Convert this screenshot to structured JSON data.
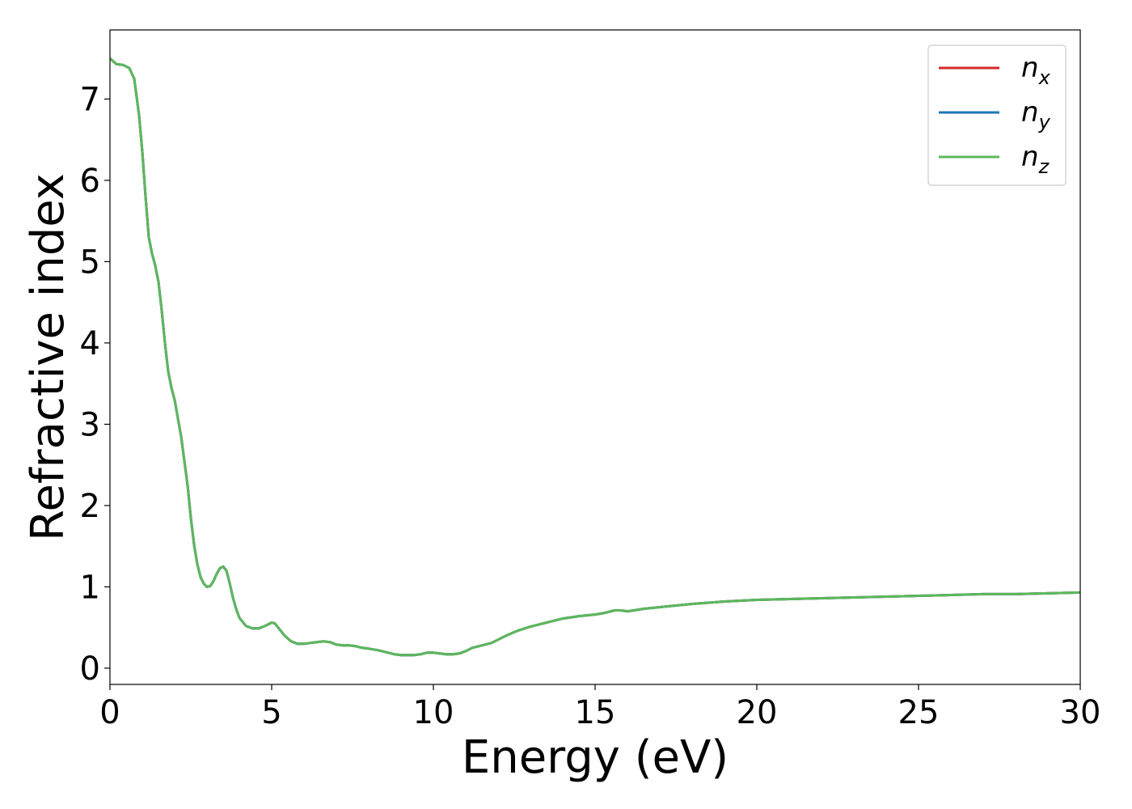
{
  "chart_data": {
    "type": "line",
    "title": "",
    "xlabel": "Energy (eV)",
    "ylabel": "Refractive index",
    "xlim": [
      0,
      30
    ],
    "ylim": [
      -0.2,
      7.85
    ],
    "xticks": [
      0,
      5,
      10,
      15,
      20,
      25,
      30
    ],
    "xtick_labels": [
      "0",
      "5",
      "10",
      "15",
      "20",
      "25",
      "30"
    ],
    "yticks": [
      0,
      1,
      2,
      3,
      4,
      5,
      6,
      7
    ],
    "ytick_labels": [
      "0",
      "1",
      "2",
      "3",
      "4",
      "5",
      "6",
      "7"
    ],
    "grid": false,
    "legend_position": "top-right",
    "x": [
      0,
      0.2,
      0.4,
      0.6,
      0.75,
      0.9,
      1.0,
      1.1,
      1.2,
      1.3,
      1.4,
      1.5,
      1.6,
      1.7,
      1.8,
      1.9,
      2.0,
      2.2,
      2.4,
      2.5,
      2.6,
      2.7,
      2.8,
      2.9,
      3.0,
      3.1,
      3.2,
      3.3,
      3.4,
      3.5,
      3.6,
      3.7,
      3.8,
      3.9,
      4.0,
      4.2,
      4.4,
      4.6,
      4.8,
      5.0,
      5.1,
      5.2,
      5.4,
      5.6,
      5.8,
      6.0,
      6.2,
      6.4,
      6.6,
      6.8,
      7.0,
      7.2,
      7.4,
      7.6,
      7.8,
      8.0,
      8.3,
      8.6,
      8.8,
      9.0,
      9.2,
      9.4,
      9.6,
      9.8,
      10.0,
      10.2,
      10.4,
      10.6,
      10.8,
      11.0,
      11.2,
      11.5,
      11.8,
      12.0,
      12.3,
      12.6,
      13.0,
      13.5,
      14.0,
      14.5,
      15.0,
      15.3,
      15.6,
      15.8,
      16.0,
      16.2,
      16.5,
      17.0,
      18.0,
      19.0,
      20.0,
      21.0,
      22.0,
      23.0,
      24.0,
      25.0,
      26.0,
      27.0,
      28.0,
      29.0,
      30.0
    ],
    "series": [
      {
        "name": "n_x",
        "color": "#d62728",
        "values": [
          7.5,
          7.43,
          7.42,
          7.38,
          7.25,
          6.8,
          6.35,
          5.8,
          5.3,
          5.1,
          4.95,
          4.75,
          4.4,
          4.0,
          3.65,
          3.45,
          3.3,
          2.85,
          2.25,
          1.85,
          1.52,
          1.28,
          1.12,
          1.04,
          1.0,
          1.01,
          1.07,
          1.16,
          1.23,
          1.25,
          1.2,
          1.05,
          0.87,
          0.73,
          0.62,
          0.52,
          0.49,
          0.49,
          0.52,
          0.56,
          0.55,
          0.5,
          0.4,
          0.33,
          0.3,
          0.3,
          0.31,
          0.32,
          0.33,
          0.32,
          0.29,
          0.28,
          0.28,
          0.27,
          0.25,
          0.24,
          0.22,
          0.19,
          0.17,
          0.16,
          0.16,
          0.16,
          0.17,
          0.19,
          0.19,
          0.18,
          0.17,
          0.17,
          0.18,
          0.21,
          0.25,
          0.28,
          0.31,
          0.35,
          0.41,
          0.46,
          0.51,
          0.56,
          0.61,
          0.64,
          0.66,
          0.68,
          0.71,
          0.71,
          0.7,
          0.71,
          0.73,
          0.75,
          0.79,
          0.82,
          0.84,
          0.85,
          0.86,
          0.87,
          0.88,
          0.89,
          0.9,
          0.91,
          0.91,
          0.92,
          0.93
        ]
      },
      {
        "name": "n_y",
        "color": "#1f77b4",
        "values": [
          7.5,
          7.43,
          7.42,
          7.38,
          7.25,
          6.8,
          6.35,
          5.8,
          5.3,
          5.1,
          4.95,
          4.75,
          4.4,
          4.0,
          3.65,
          3.45,
          3.3,
          2.85,
          2.25,
          1.85,
          1.52,
          1.28,
          1.12,
          1.04,
          1.0,
          1.01,
          1.07,
          1.16,
          1.23,
          1.25,
          1.2,
          1.05,
          0.87,
          0.73,
          0.62,
          0.52,
          0.49,
          0.49,
          0.52,
          0.56,
          0.55,
          0.5,
          0.4,
          0.33,
          0.3,
          0.3,
          0.31,
          0.32,
          0.33,
          0.32,
          0.29,
          0.28,
          0.28,
          0.27,
          0.25,
          0.24,
          0.22,
          0.19,
          0.17,
          0.16,
          0.16,
          0.16,
          0.17,
          0.19,
          0.19,
          0.18,
          0.17,
          0.17,
          0.18,
          0.21,
          0.25,
          0.28,
          0.31,
          0.35,
          0.41,
          0.46,
          0.51,
          0.56,
          0.61,
          0.64,
          0.66,
          0.68,
          0.71,
          0.71,
          0.7,
          0.71,
          0.73,
          0.75,
          0.79,
          0.82,
          0.84,
          0.85,
          0.86,
          0.87,
          0.88,
          0.89,
          0.9,
          0.91,
          0.91,
          0.92,
          0.93
        ]
      },
      {
        "name": "n_z",
        "color": "#5cb85c",
        "values": [
          7.5,
          7.43,
          7.42,
          7.38,
          7.25,
          6.8,
          6.35,
          5.8,
          5.3,
          5.1,
          4.95,
          4.75,
          4.4,
          4.0,
          3.65,
          3.45,
          3.3,
          2.85,
          2.25,
          1.85,
          1.52,
          1.28,
          1.12,
          1.04,
          1.0,
          1.01,
          1.07,
          1.16,
          1.23,
          1.25,
          1.2,
          1.05,
          0.87,
          0.73,
          0.62,
          0.52,
          0.49,
          0.49,
          0.52,
          0.56,
          0.55,
          0.5,
          0.4,
          0.33,
          0.3,
          0.3,
          0.31,
          0.32,
          0.33,
          0.32,
          0.29,
          0.28,
          0.28,
          0.27,
          0.25,
          0.24,
          0.22,
          0.19,
          0.17,
          0.16,
          0.16,
          0.16,
          0.17,
          0.19,
          0.19,
          0.18,
          0.17,
          0.17,
          0.18,
          0.21,
          0.25,
          0.28,
          0.31,
          0.35,
          0.41,
          0.46,
          0.51,
          0.56,
          0.61,
          0.64,
          0.66,
          0.68,
          0.71,
          0.71,
          0.7,
          0.71,
          0.73,
          0.75,
          0.79,
          0.82,
          0.84,
          0.85,
          0.86,
          0.87,
          0.88,
          0.89,
          0.9,
          0.91,
          0.91,
          0.92,
          0.93
        ]
      }
    ],
    "legend": [
      {
        "base": "n",
        "sub": "x",
        "color": "#d62728"
      },
      {
        "base": "n",
        "sub": "y",
        "color": "#1f77b4"
      },
      {
        "base": "n",
        "sub": "z",
        "color": "#5cb85c"
      }
    ]
  }
}
